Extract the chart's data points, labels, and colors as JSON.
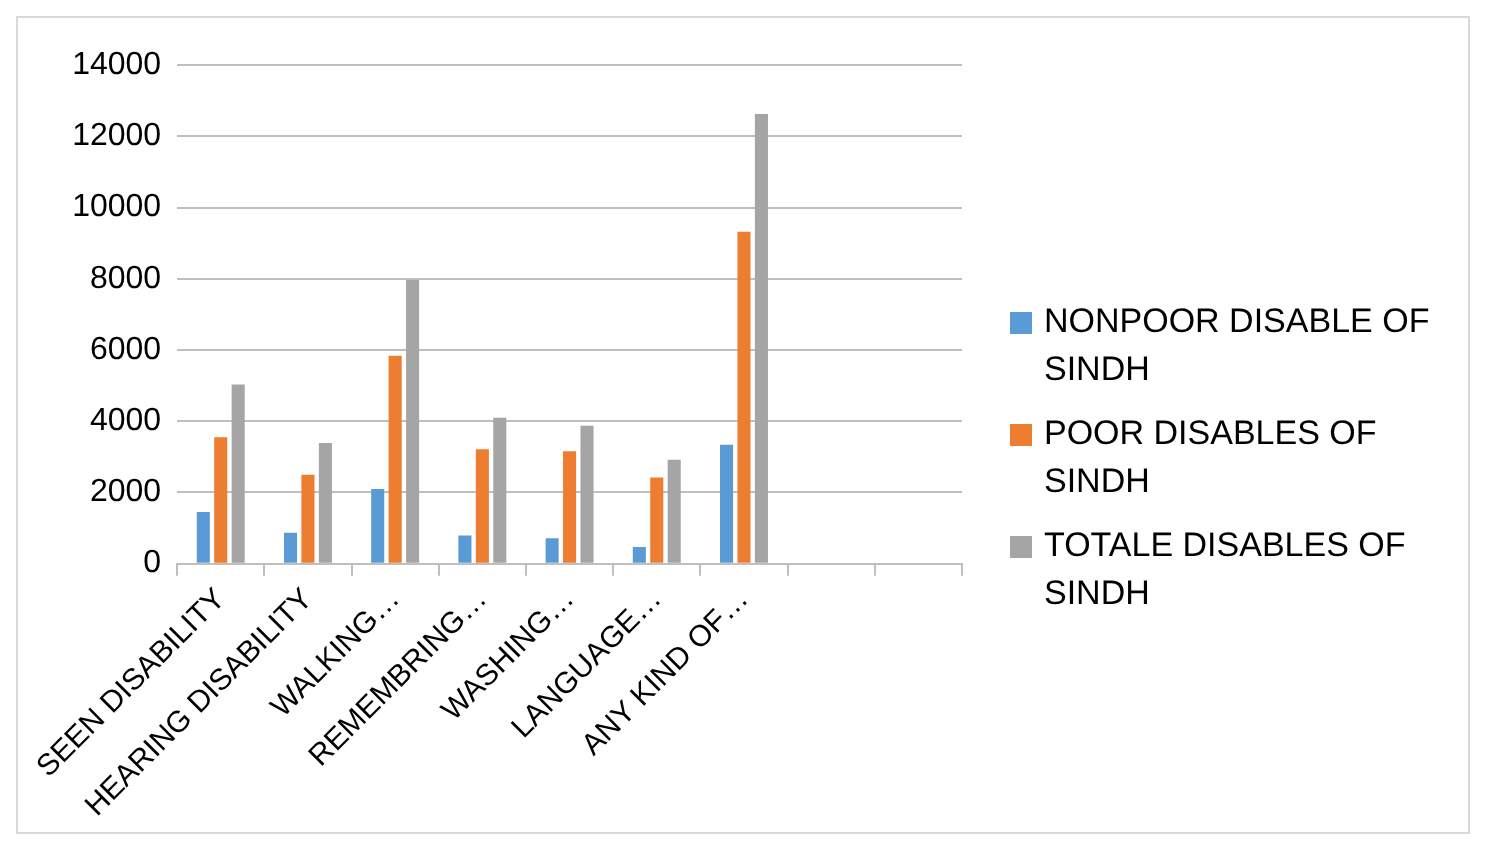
{
  "chart_data": {
    "type": "bar",
    "categories": [
      "SEEN DISABILITY",
      "HEARING DISABILITY",
      "WALKING…",
      "REMEMBRING…",
      "WASHING…",
      "LANGUAGE…",
      "ANY KIND OF…",
      null,
      null
    ],
    "series": [
      {
        "name": "NONPOOR DISABLE OF SINDH",
        "color": "#5b9bd5",
        "values": [
          1450,
          870,
          2100,
          790,
          710,
          470,
          3340,
          null,
          null
        ]
      },
      {
        "name": "POOR DISABLES OF SINDH",
        "color": "#ed7d31",
        "values": [
          3550,
          2500,
          5840,
          3210,
          3160,
          2420,
          9320,
          null,
          null
        ]
      },
      {
        "name": "TOTALE DISABLES OF SINDH",
        "color": "#a5a5a5",
        "values": [
          5030,
          3390,
          7970,
          4100,
          3870,
          2920,
          12630,
          null,
          null
        ]
      }
    ],
    "ylim": [
      0,
      14000
    ],
    "yticks": [
      0,
      2000,
      4000,
      6000,
      8000,
      10000,
      12000,
      14000
    ],
    "grid": "y",
    "legend": "right"
  }
}
